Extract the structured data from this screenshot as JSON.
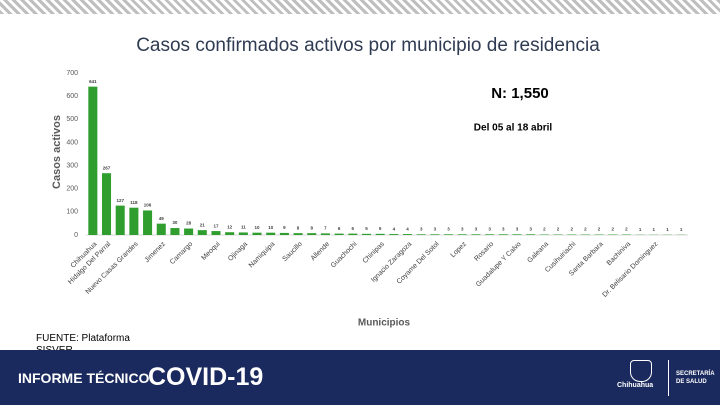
{
  "chart_data": {
    "type": "bar",
    "title": "Casos confirmados activos por municipio de residencia",
    "ylabel": "Casos activos",
    "xlabel": "Municipios",
    "annotations": [
      "N: 1,550",
      "Del 05 al 18 abril"
    ],
    "categories": [
      "Chihuahua",
      "Hidalgo Del Parral",
      null,
      "Nuevo Casas Grandes",
      null,
      "Jimenez",
      null,
      "Camargo",
      null,
      "Meoqui",
      null,
      "Ojinaga",
      null,
      "Namiquipa",
      null,
      "Saucillo",
      null,
      "Allende",
      null,
      "Guachochi",
      null,
      "Chinipas",
      null,
      "Ignacio Zaragoza",
      null,
      "Coyame Del Sotol",
      null,
      "Lopez",
      null,
      "Rosario",
      null,
      "Guadalupe Y Calvo",
      null,
      "Galeana",
      null,
      "Cusihuiriachi",
      null,
      "Santa Barbara",
      null,
      "Bachiniva",
      null,
      "Dr. Belisario Dominguez",
      null,
      null
    ],
    "values": [
      641,
      267,
      127,
      118,
      106,
      49,
      30,
      28,
      21,
      17,
      12,
      11,
      10,
      10,
      9,
      8,
      8,
      7,
      6,
      6,
      5,
      5,
      4,
      4,
      3,
      3,
      3,
      3,
      3,
      3,
      3,
      3,
      3,
      2,
      2,
      2,
      2,
      2,
      2,
      2,
      1,
      1,
      1,
      1
    ],
    "color": "#2f9e2f",
    "ylim": [
      0,
      700
    ],
    "yticks": [
      0,
      100,
      200,
      300,
      400,
      500,
      600,
      700
    ]
  },
  "source": "FUENTE: Plataforma SISVER",
  "banner": {
    "label": "INFORME TÉCNICO",
    "title": "COVID-19",
    "logo": "Chihuahua",
    "dept": "SECRETARÍA DE SALUD"
  }
}
